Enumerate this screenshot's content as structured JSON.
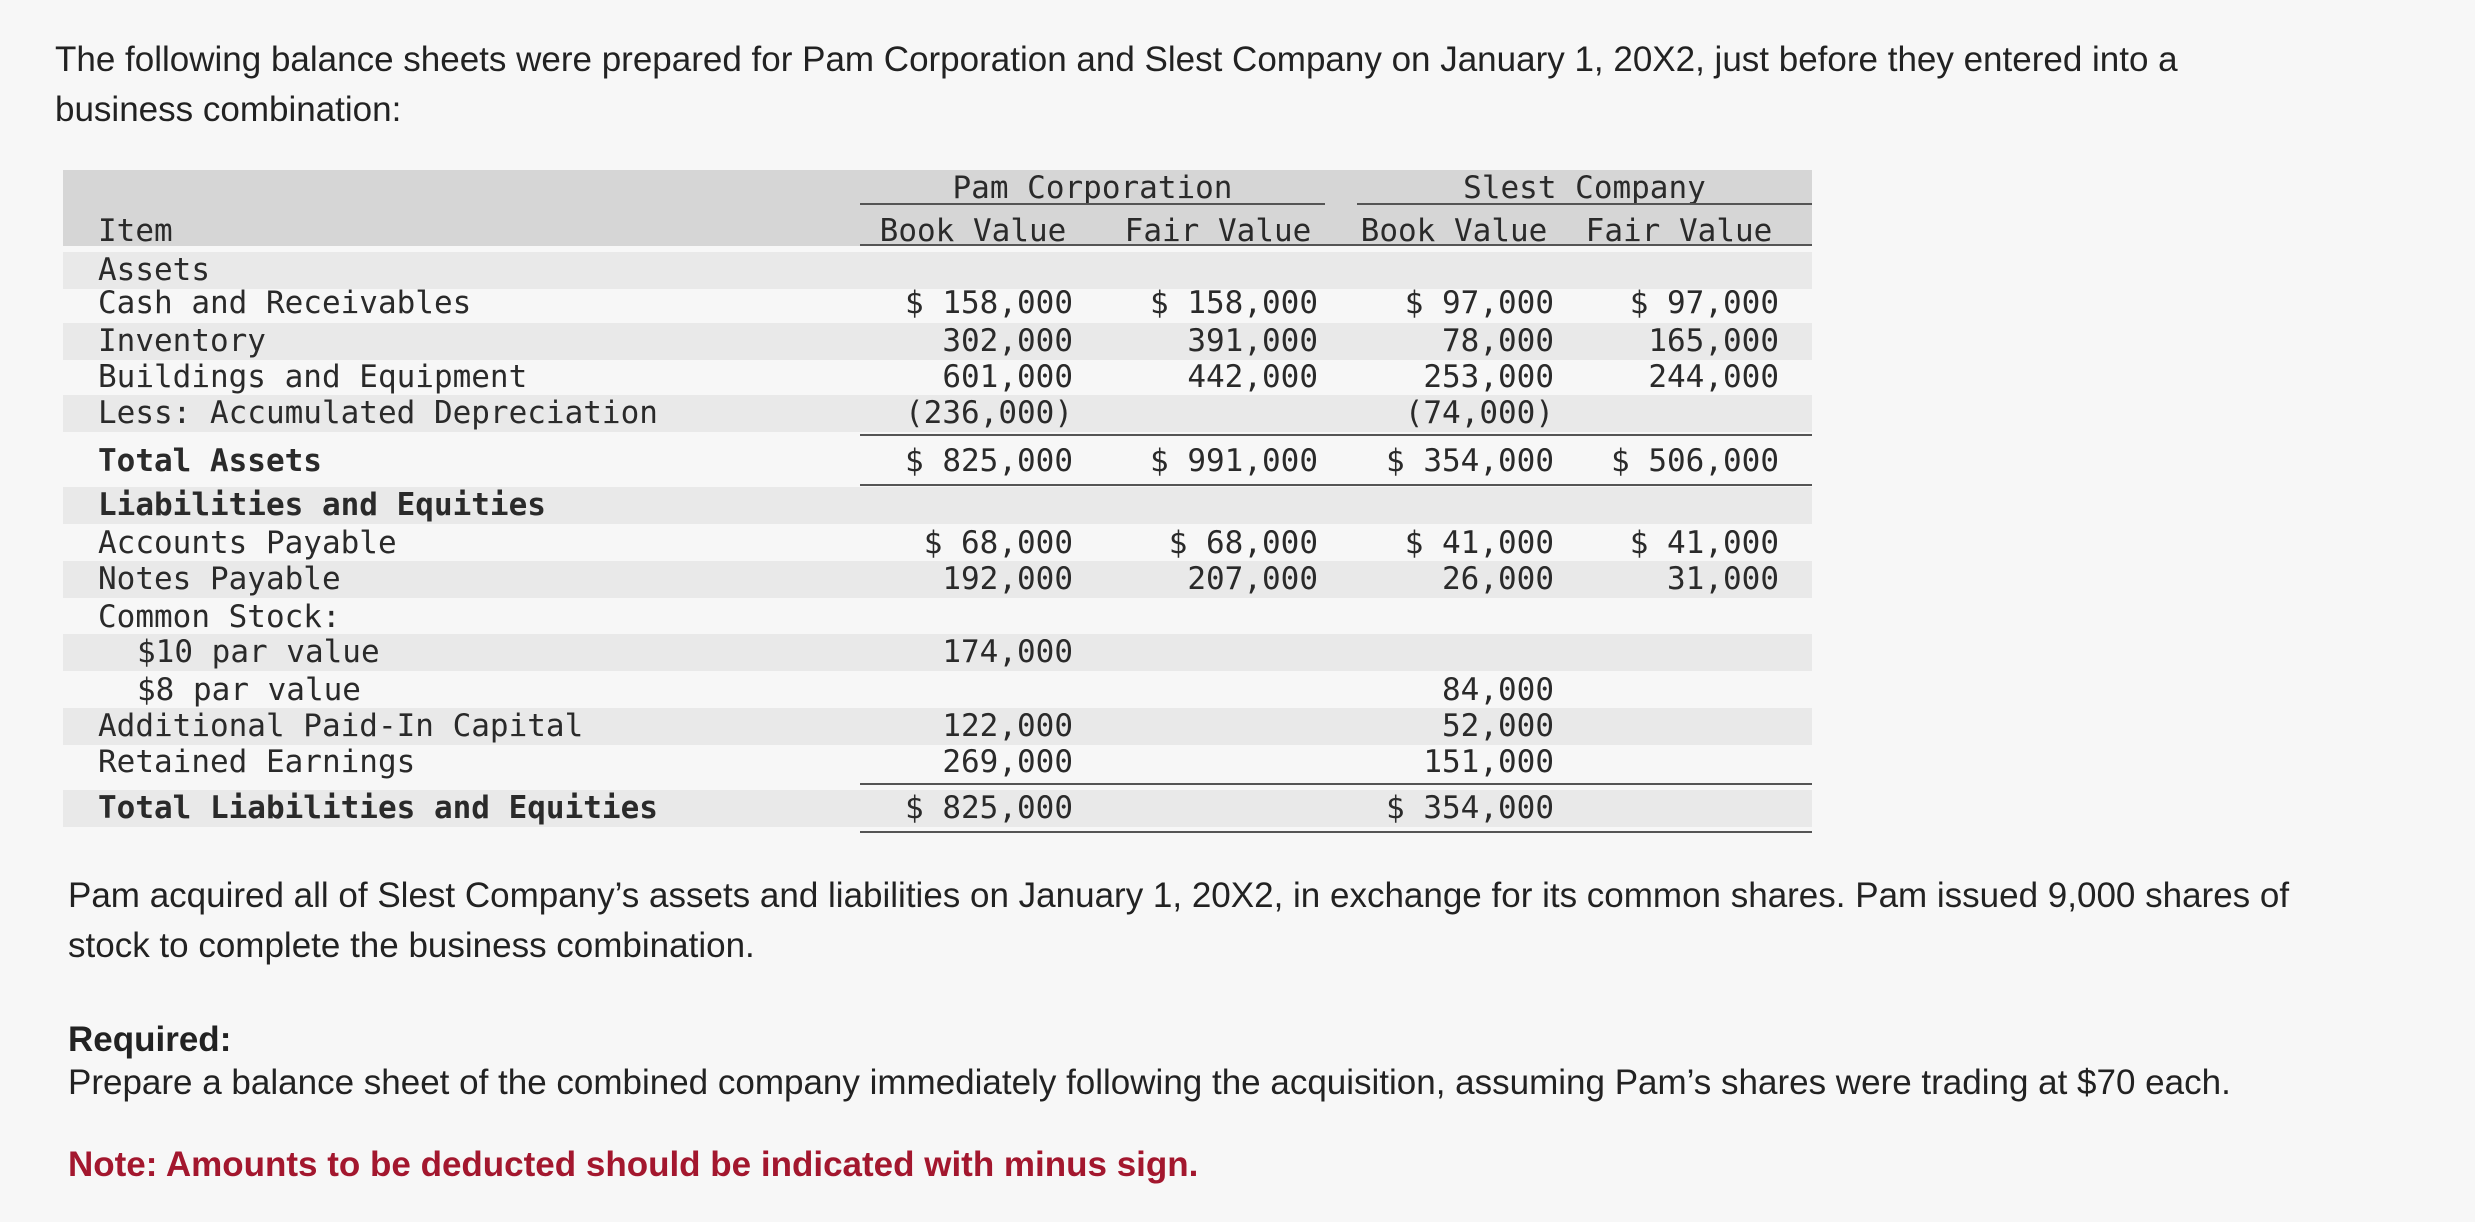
{
  "intro": "The following balance sheets were prepared for Pam Corporation and Slest Company on January 1, 20X2, just before they entered into a business combination:",
  "table": {
    "groups": [
      "Pam Corporation",
      "Slest Company"
    ],
    "columns": [
      "Item",
      "Book Value",
      "Fair Value",
      "Book Value",
      "Fair Value"
    ],
    "rows": [
      [
        "Assets",
        null,
        null,
        null,
        null
      ],
      [
        "Cash and Receivables",
        "$ 158,000",
        "$ 158,000",
        "$ 97,000",
        "$ 97,000"
      ],
      [
        "Inventory",
        "302,000",
        "391,000",
        "78,000",
        "165,000"
      ],
      [
        "Buildings and Equipment",
        "601,000",
        "442,000",
        "253,000",
        "244,000"
      ],
      [
        "Less: Accumulated Depreciation",
        "(236,000)",
        null,
        "(74,000)",
        null
      ],
      [
        "Total Assets",
        "$ 825,000",
        "$ 991,000",
        "$ 354,000",
        "$ 506,000"
      ],
      [
        "Liabilities and Equities",
        null,
        null,
        null,
        null
      ],
      [
        "Accounts Payable",
        "$ 68,000",
        "$ 68,000",
        "$ 41,000",
        "$ 41,000"
      ],
      [
        "Notes Payable",
        "192,000",
        "207,000",
        "26,000",
        "31,000"
      ],
      [
        "Common Stock:",
        null,
        null,
        null,
        null
      ],
      [
        "$10 par value",
        "174,000",
        null,
        null,
        null
      ],
      [
        "$8 par value",
        null,
        null,
        "84,000",
        null
      ],
      [
        "Additional Paid-In Capital",
        "122,000",
        null,
        "52,000",
        null
      ],
      [
        "Retained Earnings",
        "269,000",
        null,
        "151,000",
        null
      ],
      [
        "Total Liabilities and Equities",
        "$ 825,000",
        null,
        "$ 354,000",
        null
      ]
    ]
  },
  "paragraph": "Pam acquired all of Slest Company’s assets and liabilities on January 1, 20X2, in exchange for its common shares. Pam issued 9,000 shares of stock to complete the business combination.",
  "required": {
    "label": "Required:",
    "text": "Prepare a balance sheet of the combined company immediately following the acquisition, assuming Pam’s shares were trading at $70 each.",
    "note": "Note: Amounts to be deducted should be indicated with minus sign."
  }
}
